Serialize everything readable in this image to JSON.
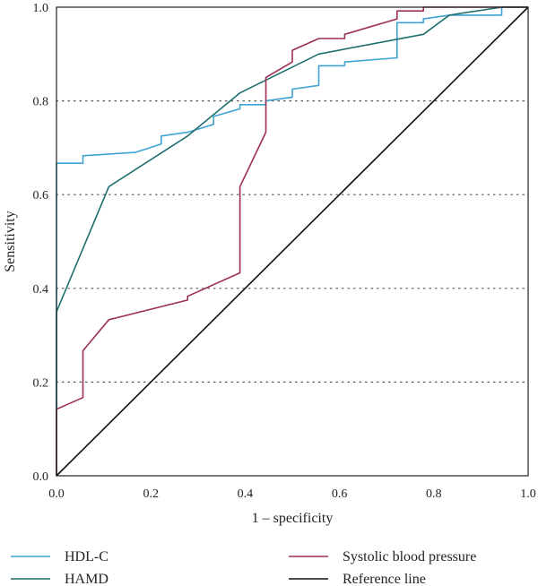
{
  "chart_data": {
    "type": "line",
    "title": "",
    "xlabel": "1 – specificity",
    "ylabel": "Sensitivity",
    "xlim": [
      0,
      1
    ],
    "ylim": [
      0,
      1
    ],
    "x_ticks": [
      "0.0",
      "0.2",
      "0.4",
      "0.6",
      "0.8",
      "1.0"
    ],
    "y_ticks": [
      "0.0",
      "0.2",
      "0.4",
      "0.6",
      "0.8",
      "1.0"
    ],
    "grid": "horizontal dotted",
    "legend_position": "bottom",
    "series": [
      {
        "name": "HDL-C",
        "color": "#3fa2d3",
        "points": [
          [
            0,
            0
          ],
          [
            0,
            0.667
          ],
          [
            0.056,
            0.667
          ],
          [
            0.056,
            0.683
          ],
          [
            0.167,
            0.69
          ],
          [
            0.222,
            0.708
          ],
          [
            0.222,
            0.725
          ],
          [
            0.278,
            0.733
          ],
          [
            0.333,
            0.75
          ],
          [
            0.333,
            0.767
          ],
          [
            0.389,
            0.783
          ],
          [
            0.389,
            0.792
          ],
          [
            0.444,
            0.792
          ],
          [
            0.444,
            0.8
          ],
          [
            0.5,
            0.808
          ],
          [
            0.5,
            0.825
          ],
          [
            0.556,
            0.833
          ],
          [
            0.556,
            0.875
          ],
          [
            0.611,
            0.875
          ],
          [
            0.611,
            0.883
          ],
          [
            0.722,
            0.892
          ],
          [
            0.722,
            0.967
          ],
          [
            0.778,
            0.967
          ],
          [
            0.778,
            0.975
          ],
          [
            0.833,
            0.983
          ],
          [
            0.944,
            0.983
          ],
          [
            0.944,
            1.0
          ],
          [
            1.0,
            1.0
          ]
        ]
      },
      {
        "name": "HAMD",
        "color": "#1f6e6e",
        "points": [
          [
            0,
            0
          ],
          [
            0,
            0.35
          ],
          [
            0.111,
            0.617
          ],
          [
            0.278,
            0.725
          ],
          [
            0.389,
            0.817
          ],
          [
            0.556,
            0.9
          ],
          [
            0.778,
            0.942
          ],
          [
            0.833,
            0.983
          ],
          [
            0.944,
            1.0
          ],
          [
            1.0,
            1.0
          ]
        ]
      },
      {
        "name": "Systolic blood pressure",
        "color": "#9c2e57",
        "points": [
          [
            0,
            0
          ],
          [
            0,
            0.142
          ],
          [
            0.056,
            0.167
          ],
          [
            0.056,
            0.267
          ],
          [
            0.111,
            0.333
          ],
          [
            0.278,
            0.375
          ],
          [
            0.278,
            0.383
          ],
          [
            0.389,
            0.433
          ],
          [
            0.389,
            0.617
          ],
          [
            0.444,
            0.733
          ],
          [
            0.444,
            0.85
          ],
          [
            0.5,
            0.883
          ],
          [
            0.5,
            0.908
          ],
          [
            0.556,
            0.933
          ],
          [
            0.611,
            0.933
          ],
          [
            0.611,
            0.942
          ],
          [
            0.722,
            0.975
          ],
          [
            0.722,
            0.992
          ],
          [
            0.778,
            0.992
          ],
          [
            0.778,
            1.0
          ],
          [
            1.0,
            1.0
          ]
        ]
      },
      {
        "name": "Reference line",
        "color": "#111111",
        "points": [
          [
            0,
            0
          ],
          [
            1,
            1
          ]
        ]
      }
    ]
  }
}
